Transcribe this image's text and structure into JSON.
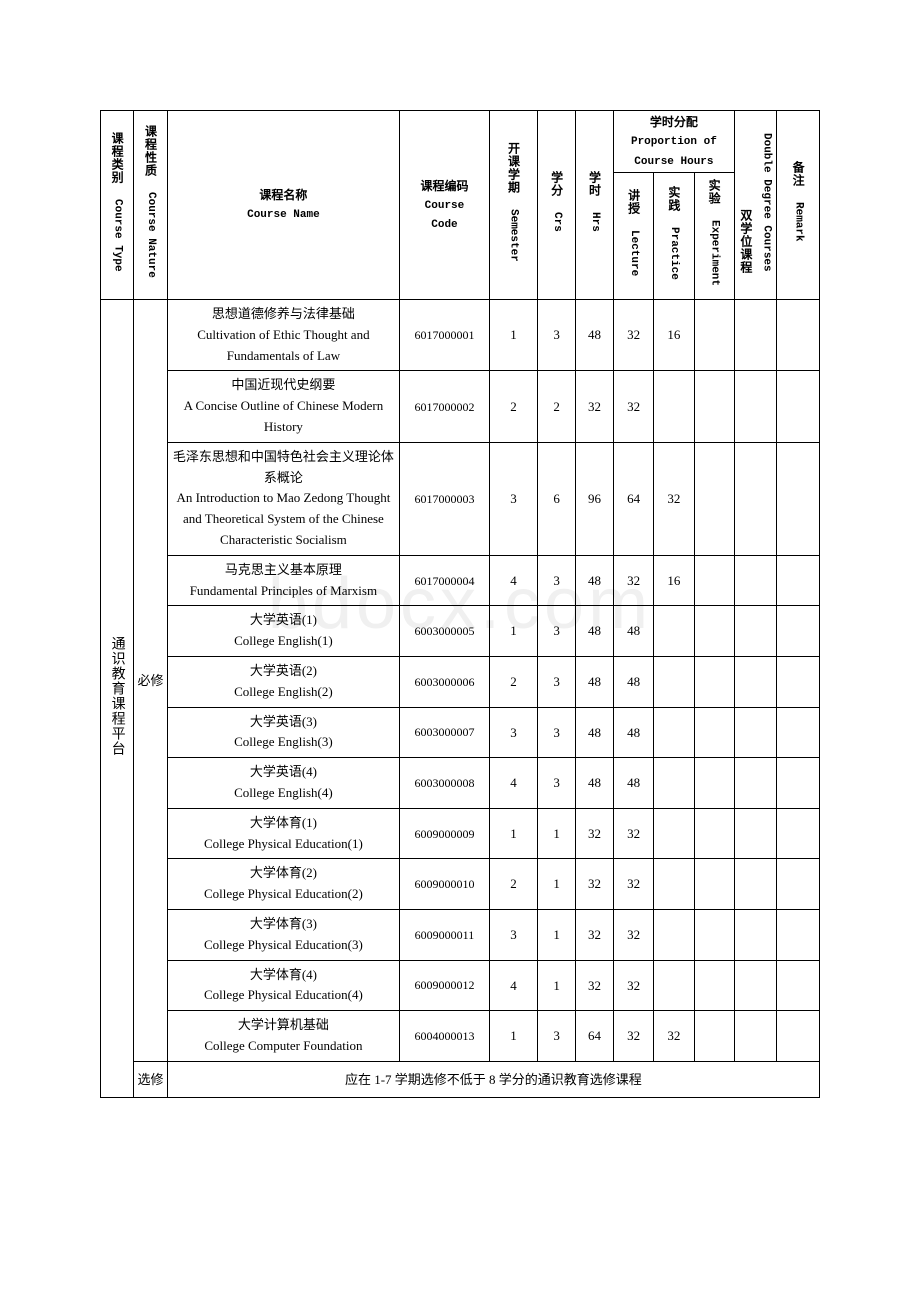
{
  "watermark": "bdocx.com",
  "headers": {
    "course_type_cn": "课程类别",
    "course_type_en": "Course Type",
    "course_nature_cn": "课程性质",
    "course_nature_en": "Course Nature",
    "course_name_cn": "课程名称",
    "course_name_en": "Course Name",
    "course_code_cn": "课程编码",
    "course_code_en": "Course",
    "course_code_en2": "Code",
    "semester_cn": "开课学期",
    "semester_en": "Semester",
    "crs_cn": "学分",
    "crs_en": "Crs",
    "hrs_cn": "学时",
    "hrs_en": "Hrs",
    "prop_cn": "学时分配",
    "prop_en1": "Proportion of",
    "prop_en2": "Course Hours",
    "lecture_cn": "讲授",
    "lecture_en": "Lecture",
    "practice_cn": "实践",
    "practice_en": "Practice",
    "experiment_cn": "实验",
    "experiment_en": "Experiment",
    "double_cn": "双学位课程",
    "double_en": "Double Degree Courses",
    "remark_cn": "备注",
    "remark_en": "Remark"
  },
  "type_label": "通识教育课程平台",
  "nature_required": "必修",
  "nature_elective": "选修",
  "elective_note": "应在 1-7 学期选修不低于 8 学分的通识教育选修课程",
  "rows": [
    {
      "name_cn": "思想道德修养与法律基础",
      "name_en": "Cultivation of Ethic Thought and Fundamentals of Law",
      "code": "6017000001",
      "sem": "1",
      "crs": "3",
      "hrs": "48",
      "lec": "32",
      "prac": "16",
      "exp": "",
      "dbl": "",
      "rmk": ""
    },
    {
      "name_cn": "中国近现代史纲要",
      "name_en": "A Concise Outline of Chinese Modern History",
      "code": "6017000002",
      "sem": "2",
      "crs": "2",
      "hrs": "32",
      "lec": "32",
      "prac": "",
      "exp": "",
      "dbl": "",
      "rmk": ""
    },
    {
      "name_cn": "毛泽东思想和中国特色社会主义理论体系概论",
      "name_en": "An Introduction to Mao Zedong Thought and Theoretical System of the Chinese Characteristic Socialism",
      "code": "6017000003",
      "sem": "3",
      "crs": "6",
      "hrs": "96",
      "lec": "64",
      "prac": "32",
      "exp": "",
      "dbl": "",
      "rmk": ""
    },
    {
      "name_cn": "马克思主义基本原理",
      "name_en": "Fundamental Principles of Marxism",
      "code": "6017000004",
      "sem": "4",
      "crs": "3",
      "hrs": "48",
      "lec": "32",
      "prac": "16",
      "exp": "",
      "dbl": "",
      "rmk": ""
    },
    {
      "name_cn": "大学英语(1)",
      "name_en": "College English(1)",
      "code": "6003000005",
      "sem": "1",
      "crs": "3",
      "hrs": "48",
      "lec": "48",
      "prac": "",
      "exp": "",
      "dbl": "",
      "rmk": ""
    },
    {
      "name_cn": "大学英语(2)",
      "name_en": "College English(2)",
      "code": "6003000006",
      "sem": "2",
      "crs": "3",
      "hrs": "48",
      "lec": "48",
      "prac": "",
      "exp": "",
      "dbl": "",
      "rmk": ""
    },
    {
      "name_cn": "大学英语(3)",
      "name_en": "College English(3)",
      "code": "6003000007",
      "sem": "3",
      "crs": "3",
      "hrs": "48",
      "lec": "48",
      "prac": "",
      "exp": "",
      "dbl": "",
      "rmk": ""
    },
    {
      "name_cn": "大学英语(4)",
      "name_en": "College English(4)",
      "code": "6003000008",
      "sem": "4",
      "crs": "3",
      "hrs": "48",
      "lec": "48",
      "prac": "",
      "exp": "",
      "dbl": "",
      "rmk": ""
    },
    {
      "name_cn": "大学体育(1)",
      "name_en": "College Physical Education(1)",
      "code": "6009000009",
      "sem": "1",
      "crs": "1",
      "hrs": "32",
      "lec": "32",
      "prac": "",
      "exp": "",
      "dbl": "",
      "rmk": ""
    },
    {
      "name_cn": "大学体育(2)",
      "name_en": "College Physical Education(2)",
      "code": "6009000010",
      "sem": "2",
      "crs": "1",
      "hrs": "32",
      "lec": "32",
      "prac": "",
      "exp": "",
      "dbl": "",
      "rmk": ""
    },
    {
      "name_cn": "大学体育(3)",
      "name_en": "College Physical Education(3)",
      "code": "6009000011",
      "sem": "3",
      "crs": "1",
      "hrs": "32",
      "lec": "32",
      "prac": "",
      "exp": "",
      "dbl": "",
      "rmk": ""
    },
    {
      "name_cn": "大学体育(4)",
      "name_en": "College Physical Education(4)",
      "code": "6009000012",
      "sem": "4",
      "crs": "1",
      "hrs": "32",
      "lec": "32",
      "prac": "",
      "exp": "",
      "dbl": "",
      "rmk": ""
    },
    {
      "name_cn": "大学计算机基础",
      "name_en": "College Computer Foundation",
      "code": "6004000013",
      "sem": "1",
      "crs": "3",
      "hrs": "64",
      "lec": "32",
      "prac": "32",
      "exp": "",
      "dbl": "",
      "rmk": ""
    }
  ],
  "style": {
    "border_color": "#000000",
    "background": "#ffffff",
    "font_size_header": 12,
    "font_size_body": 13
  }
}
